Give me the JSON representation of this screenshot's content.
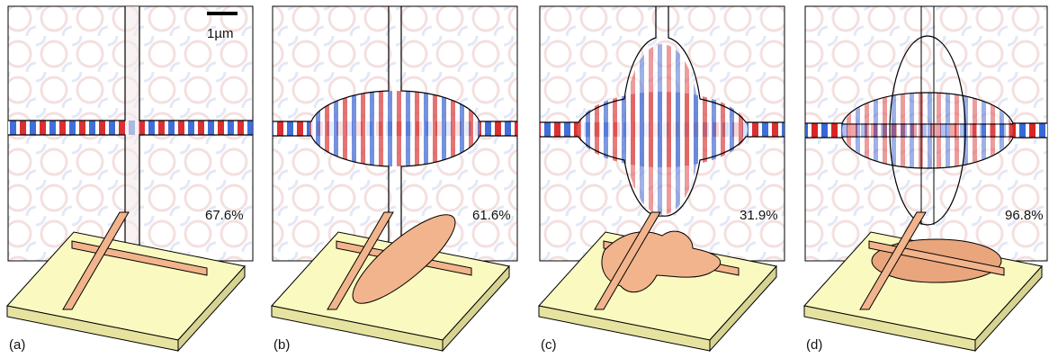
{
  "figure": {
    "scale_bar_label": "1µm",
    "panels": [
      {
        "label": "(a)",
        "efficiency": "67.6%",
        "geometry": "plain crossing"
      },
      {
        "label": "(b)",
        "efficiency": "61.6%",
        "geometry": "elliptical taper"
      },
      {
        "label": "(c)",
        "efficiency": "31.9%",
        "geometry": "four-lobed cavity"
      },
      {
        "label": "(d)",
        "efficiency": "96.8%",
        "geometry": "double-ellipse cross"
      }
    ]
  },
  "colors": {
    "field_positive": "#d7191c",
    "field_negative": "#2c5fd6",
    "substrate_top": "#fafac0",
    "substrate_side": "#e6e3a0",
    "waveguide": "#f2b48c",
    "waveguide_edge": "#000000"
  }
}
